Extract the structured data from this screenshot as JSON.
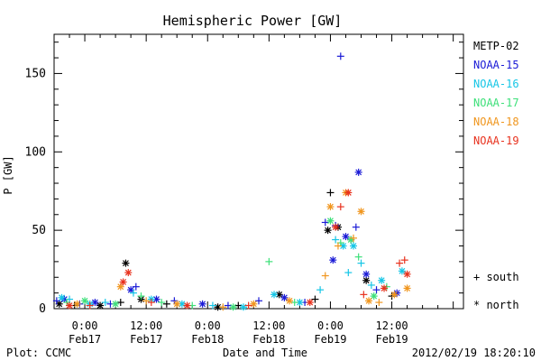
{
  "chart_data": {
    "type": "scatter",
    "title": "Hemispheric Power [GW]",
    "xlabel": "Date and Time",
    "ylabel": "P [GW]",
    "xlim": [
      "2012-02-16 18:00",
      "2012-02-20 02:00"
    ],
    "ylim": [
      0,
      175
    ],
    "y_ticks": [
      0,
      50,
      100,
      150
    ],
    "x_ticks": [
      {
        "time": "2012-02-17 00:00",
        "line1": "0:00",
        "line2": "Feb17"
      },
      {
        "time": "2012-02-17 12:00",
        "line1": "12:00",
        "line2": "Feb17"
      },
      {
        "time": "2012-02-18 00:00",
        "line1": "0:00",
        "line2": "Feb18"
      },
      {
        "time": "2012-02-18 12:00",
        "line1": "12:00",
        "line2": "Feb18"
      },
      {
        "time": "2012-02-19 00:00",
        "line1": "0:00",
        "line2": "Feb19"
      },
      {
        "time": "2012-02-19 12:00",
        "line1": "12:00",
        "line2": "Feb19"
      }
    ],
    "marker_legend": [
      {
        "marker": "plus",
        "label": "+ south"
      },
      {
        "marker": "star",
        "label": "* north"
      }
    ],
    "series": [
      {
        "name": "METP-02",
        "color": "#000000",
        "points": [
          [
            "2012-02-16 19:00",
            3,
            "star"
          ],
          [
            "2012-02-16 22:00",
            2,
            "plus"
          ],
          [
            "2012-02-17 03:00",
            2,
            "star"
          ],
          [
            "2012-02-17 07:00",
            4,
            "plus"
          ],
          [
            "2012-02-17 08:00",
            29,
            "star"
          ],
          [
            "2012-02-17 11:00",
            6,
            "star"
          ],
          [
            "2012-02-17 16:00",
            3,
            "plus"
          ],
          [
            "2012-02-18 02:00",
            1,
            "star"
          ],
          [
            "2012-02-18 06:00",
            2,
            "plus"
          ],
          [
            "2012-02-18 14:00",
            9,
            "star"
          ],
          [
            "2012-02-18 21:00",
            6,
            "plus"
          ],
          [
            "2012-02-18 23:30",
            50,
            "star"
          ],
          [
            "2012-02-19 00:00",
            74,
            "plus"
          ],
          [
            "2012-02-19 01:30",
            52,
            "star"
          ],
          [
            "2012-02-19 04:00",
            44,
            "plus"
          ],
          [
            "2012-02-19 07:00",
            18,
            "star"
          ],
          [
            "2012-02-19 12:00",
            8,
            "plus"
          ]
        ]
      },
      {
        "name": "NOAA-15",
        "color": "#1a1ad6",
        "points": [
          [
            "2012-02-16 18:30",
            5,
            "plus"
          ],
          [
            "2012-02-16 20:00",
            6,
            "star"
          ],
          [
            "2012-02-16 23:00",
            3,
            "plus"
          ],
          [
            "2012-02-17 02:00",
            4,
            "star"
          ],
          [
            "2012-02-17 05:00",
            3,
            "plus"
          ],
          [
            "2012-02-17 09:00",
            12,
            "star"
          ],
          [
            "2012-02-17 10:00",
            14,
            "plus"
          ],
          [
            "2012-02-17 14:00",
            6,
            "star"
          ],
          [
            "2012-02-17 17:30",
            5,
            "plus"
          ],
          [
            "2012-02-17 23:00",
            3,
            "star"
          ],
          [
            "2012-02-18 04:00",
            2,
            "plus"
          ],
          [
            "2012-02-18 10:00",
            5,
            "plus"
          ],
          [
            "2012-02-18 15:00",
            7,
            "star"
          ],
          [
            "2012-02-18 19:00",
            4,
            "plus"
          ],
          [
            "2012-02-18 23:00",
            55,
            "plus"
          ],
          [
            "2012-02-19 00:30",
            31,
            "star"
          ],
          [
            "2012-02-19 01:00",
            53,
            "plus"
          ],
          [
            "2012-02-19 02:00",
            161,
            "plus"
          ],
          [
            "2012-02-19 03:00",
            46,
            "star"
          ],
          [
            "2012-02-19 05:00",
            52,
            "plus"
          ],
          [
            "2012-02-19 05:30",
            87,
            "star"
          ],
          [
            "2012-02-19 07:00",
            22,
            "star"
          ],
          [
            "2012-02-19 09:00",
            12,
            "plus"
          ],
          [
            "2012-02-19 13:00",
            10,
            "star"
          ]
        ]
      },
      {
        "name": "NOAA-16",
        "color": "#16c6e6",
        "points": [
          [
            "2012-02-16 19:30",
            7,
            "star"
          ],
          [
            "2012-02-16 21:00",
            6,
            "plus"
          ],
          [
            "2012-02-17 01:00",
            3,
            "star"
          ],
          [
            "2012-02-17 04:00",
            4,
            "plus"
          ],
          [
            "2012-02-17 09:30",
            10,
            "plus"
          ],
          [
            "2012-02-17 13:00",
            6,
            "star"
          ],
          [
            "2012-02-17 19:00",
            3,
            "star"
          ],
          [
            "2012-02-18 01:00",
            2,
            "plus"
          ],
          [
            "2012-02-18 07:00",
            1,
            "star"
          ],
          [
            "2012-02-18 13:00",
            9,
            "star"
          ],
          [
            "2012-02-18 18:00",
            4,
            "star"
          ],
          [
            "2012-02-18 22:00",
            12,
            "plus"
          ],
          [
            "2012-02-19 01:00",
            44,
            "plus"
          ],
          [
            "2012-02-19 02:30",
            40,
            "star"
          ],
          [
            "2012-02-19 03:30",
            23,
            "plus"
          ],
          [
            "2012-02-19 04:30",
            40,
            "star"
          ],
          [
            "2012-02-19 06:00",
            29,
            "plus"
          ],
          [
            "2012-02-19 08:00",
            15,
            "plus"
          ],
          [
            "2012-02-19 10:00",
            18,
            "star"
          ],
          [
            "2012-02-19 14:00",
            24,
            "star"
          ]
        ]
      },
      {
        "name": "NOAA-17",
        "color": "#3ee07a",
        "points": [
          [
            "2012-02-16 20:30",
            4,
            "plus"
          ],
          [
            "2012-02-17 00:00",
            5,
            "star"
          ],
          [
            "2012-02-17 06:00",
            3,
            "star"
          ],
          [
            "2012-02-17 11:00",
            8,
            "plus"
          ],
          [
            "2012-02-17 15:00",
            4,
            "plus"
          ],
          [
            "2012-02-17 21:00",
            2,
            "plus"
          ],
          [
            "2012-02-18 05:00",
            1,
            "star"
          ],
          [
            "2012-02-18 12:00",
            30,
            "plus"
          ],
          [
            "2012-02-18 17:00",
            4,
            "plus"
          ],
          [
            "2012-02-19 00:00",
            56,
            "star"
          ],
          [
            "2012-02-19 02:00",
            42,
            "plus"
          ],
          [
            "2012-02-19 04:00",
            44,
            "star"
          ],
          [
            "2012-02-19 05:30",
            33,
            "plus"
          ],
          [
            "2012-02-19 08:30",
            8,
            "star"
          ],
          [
            "2012-02-19 11:00",
            14,
            "plus"
          ]
        ]
      },
      {
        "name": "NOAA-18",
        "color": "#f0961e",
        "points": [
          [
            "2012-02-16 22:30",
            3,
            "star"
          ],
          [
            "2012-02-17 07:00",
            14,
            "star"
          ],
          [
            "2012-02-17 12:00",
            5,
            "plus"
          ],
          [
            "2012-02-17 18:00",
            3,
            "star"
          ],
          [
            "2012-02-18 03:00",
            1,
            "plus"
          ],
          [
            "2012-02-18 09:00",
            3,
            "star"
          ],
          [
            "2012-02-18 16:00",
            5,
            "star"
          ],
          [
            "2012-02-18 23:00",
            21,
            "plus"
          ],
          [
            "2012-02-19 00:00",
            65,
            "star"
          ],
          [
            "2012-02-19 01:30",
            40,
            "plus"
          ],
          [
            "2012-02-19 03:00",
            74,
            "star"
          ],
          [
            "2012-02-19 04:30",
            45,
            "plus"
          ],
          [
            "2012-02-19 06:00",
            62,
            "star"
          ],
          [
            "2012-02-19 07:30",
            5,
            "star"
          ],
          [
            "2012-02-19 09:30",
            4,
            "plus"
          ],
          [
            "2012-02-19 12:30",
            9,
            "star"
          ],
          [
            "2012-02-19 15:00",
            13,
            "star"
          ]
        ]
      },
      {
        "name": "NOAA-19",
        "color": "#e8321e",
        "points": [
          [
            "2012-02-16 21:00",
            2,
            "star"
          ],
          [
            "2012-02-17 01:00",
            2,
            "plus"
          ],
          [
            "2012-02-17 07:30",
            17,
            "star"
          ],
          [
            "2012-02-17 08:30",
            23,
            "star"
          ],
          [
            "2012-02-17 13:00",
            4,
            "plus"
          ],
          [
            "2012-02-17 20:00",
            2,
            "star"
          ],
          [
            "2012-02-18 08:00",
            2,
            "plus"
          ],
          [
            "2012-02-18 20:00",
            4,
            "star"
          ],
          [
            "2012-02-19 01:00",
            52,
            "star"
          ],
          [
            "2012-02-19 02:00",
            65,
            "plus"
          ],
          [
            "2012-02-19 03:30",
            74,
            "star"
          ],
          [
            "2012-02-19 06:30",
            9,
            "plus"
          ],
          [
            "2012-02-19 10:30",
            13,
            "star"
          ],
          [
            "2012-02-19 13:30",
            29,
            "plus"
          ],
          [
            "2012-02-19 14:30",
            31,
            "plus"
          ],
          [
            "2012-02-19 15:00",
            22,
            "star"
          ]
        ]
      }
    ]
  },
  "footer": {
    "left": "Plot: CCMC",
    "center": "Date and Time",
    "right": "2012/02/19 18:20:10"
  }
}
